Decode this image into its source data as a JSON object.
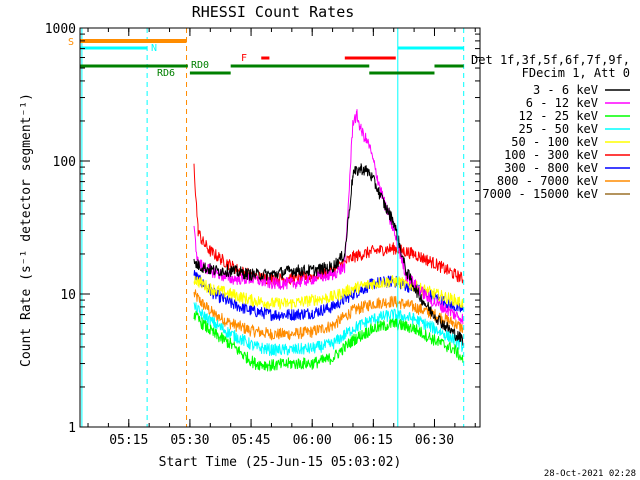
{
  "chart_data": {
    "type": "line",
    "title": "RHESSI Count Rates",
    "xlabel": "Start Time (25-Jun-15 05:03:02)",
    "ylabel": "Count Rate (s⁻¹ detector segment⁻¹)",
    "yscale": "log",
    "ylim": [
      1,
      1000
    ],
    "xlim": [
      "05:03:02",
      "06:41:10"
    ],
    "x_ticks": [
      "05:15",
      "05:30",
      "05:45",
      "06:00",
      "06:15",
      "06:30"
    ],
    "y_ticks": [
      "1",
      "10",
      "100",
      "1000"
    ],
    "grid": false,
    "legend_position": "right",
    "legend_header": [
      "Det 1f,3f,5f,6f,7f,9f,",
      "FDecim 1, Att 0"
    ],
    "timestamp": "28-Oct-2021 02:28",
    "series": [
      {
        "name": "3 - 6 keV",
        "color": "#000000",
        "x": [
          "05:31",
          "05:33",
          "05:36",
          "05:40",
          "05:45",
          "05:50",
          "05:55",
          "06:00",
          "06:05",
          "06:08",
          "06:10",
          "06:12",
          "06:14",
          "06:16",
          "06:18",
          "06:20",
          "06:23",
          "06:26",
          "06:29",
          "06:32",
          "06:35",
          "06:37"
        ],
        "values": [
          17,
          16,
          15,
          15,
          14,
          14,
          15,
          15,
          16,
          20,
          80,
          88,
          82,
          62,
          45,
          35,
          15,
          10,
          7.5,
          6,
          5,
          4.5
        ]
      },
      {
        "name": "6 - 12 keV",
        "color": "#ff00ff",
        "x": [
          "05:31",
          "05:32",
          "05:35",
          "05:40",
          "05:45",
          "05:50",
          "05:55",
          "06:00",
          "06:05",
          "06:08",
          "06:10",
          "06:11",
          "06:12",
          "06:14",
          "06:16",
          "06:18",
          "06:20",
          "06:23",
          "06:26",
          "06:29",
          "06:32",
          "06:35",
          "06:37"
        ],
        "values": [
          30,
          17,
          15,
          13,
          13,
          12,
          12,
          13,
          14,
          16,
          200,
          220,
          170,
          130,
          75,
          45,
          30,
          14,
          11,
          9,
          8,
          7,
          6.5
        ]
      },
      {
        "name": "12 - 25 keV",
        "color": "#00ff00",
        "x": [
          "05:31",
          "05:33",
          "05:36",
          "05:40",
          "05:43",
          "05:46",
          "05:50",
          "05:55",
          "06:00",
          "06:05",
          "06:10",
          "06:15",
          "06:20",
          "06:25",
          "06:30",
          "06:35",
          "06:37"
        ],
        "values": [
          7,
          6,
          5,
          4.2,
          3.5,
          3,
          2.9,
          3,
          3,
          3.3,
          4.5,
          5.5,
          6,
          5.5,
          4.5,
          3.8,
          3.2
        ]
      },
      {
        "name": "25 - 50 keV",
        "color": "#00ffff",
        "x": [
          "05:31",
          "05:33",
          "05:36",
          "05:40",
          "05:43",
          "05:46",
          "05:50",
          "05:55",
          "06:00",
          "06:05",
          "06:10",
          "06:15",
          "06:20",
          "06:25",
          "06:30",
          "06:35",
          "06:37"
        ],
        "values": [
          8,
          7,
          6,
          5,
          4.5,
          4,
          3.8,
          3.8,
          3.9,
          4.2,
          5.5,
          6.5,
          7,
          6.5,
          5.5,
          4.5,
          4
        ]
      },
      {
        "name": "50 - 100 keV",
        "color": "#ffff00",
        "x": [
          "05:31",
          "05:35",
          "05:40",
          "05:45",
          "05:50",
          "05:55",
          "06:00",
          "06:05",
          "06:10",
          "06:15",
          "06:20",
          "06:25",
          "06:30",
          "06:35",
          "06:37"
        ],
        "values": [
          13,
          11,
          10,
          9,
          8.5,
          8.5,
          9,
          9.5,
          11,
          12,
          12.5,
          11.5,
          10,
          9,
          8.5
        ]
      },
      {
        "name": "100 - 300 keV",
        "color": "#ff0000",
        "x": [
          "05:31",
          "05:32",
          "05:33",
          "05:35",
          "05:38",
          "05:42",
          "05:46",
          "05:50",
          "05:55",
          "06:00",
          "06:05",
          "06:10",
          "06:15",
          "06:20",
          "06:25",
          "06:30",
          "06:35",
          "06:37"
        ],
        "values": [
          90,
          30,
          25,
          21,
          18,
          15,
          13.5,
          13,
          13,
          13.5,
          15,
          19,
          21,
          22,
          20,
          17,
          14,
          13
        ]
      },
      {
        "name": "300 - 800 keV",
        "color": "#0000ff",
        "x": [
          "05:31",
          "05:33",
          "05:36",
          "05:40",
          "05:45",
          "05:50",
          "05:55",
          "06:00",
          "06:05",
          "06:10",
          "06:15",
          "06:20",
          "06:25",
          "06:30",
          "06:35",
          "06:37"
        ],
        "values": [
          14,
          12,
          10,
          8.5,
          7.5,
          7,
          7,
          7.2,
          8,
          10,
          12,
          12.5,
          11,
          9.5,
          8,
          7.5
        ]
      },
      {
        "name": "800 - 7000 keV",
        "color": "#ff8c00",
        "x": [
          "05:31",
          "05:33",
          "05:36",
          "05:40",
          "05:45",
          "05:50",
          "05:55",
          "06:00",
          "06:05",
          "06:10",
          "06:15",
          "06:20",
          "06:25",
          "06:30",
          "06:35",
          "06:37"
        ],
        "values": [
          10,
          8.5,
          7,
          6,
          5.3,
          5,
          5,
          5.2,
          5.8,
          7.5,
          8.5,
          8.8,
          8,
          7,
          6,
          5.5
        ]
      },
      {
        "name": "7000 - 15000 keV",
        "color": "#9b7028",
        "x": [],
        "values": []
      }
    ],
    "annotations": {
      "markers": [
        {
          "label": "S",
          "color": "#ff8c00"
        },
        {
          "label": "N",
          "color": "#00ffff"
        },
        {
          "label": "F",
          "color": "#ff0000"
        },
        {
          "label": "RD0",
          "color": "#008000"
        },
        {
          "label": "RD6",
          "color": "#008000"
        }
      ],
      "vertical_lines": [
        {
          "x": "05:03:30",
          "color": "#00ffff",
          "style": "solid"
        },
        {
          "x": "05:19:30",
          "color": "#00ffff",
          "style": "dashed"
        },
        {
          "x": "05:29:10",
          "color": "#ff8c00",
          "style": "dashed"
        },
        {
          "x": "06:21:00",
          "color": "#00ffff",
          "style": "solid"
        },
        {
          "x": "06:37:10",
          "color": "#00ffff",
          "style": "dashed"
        }
      ]
    }
  }
}
